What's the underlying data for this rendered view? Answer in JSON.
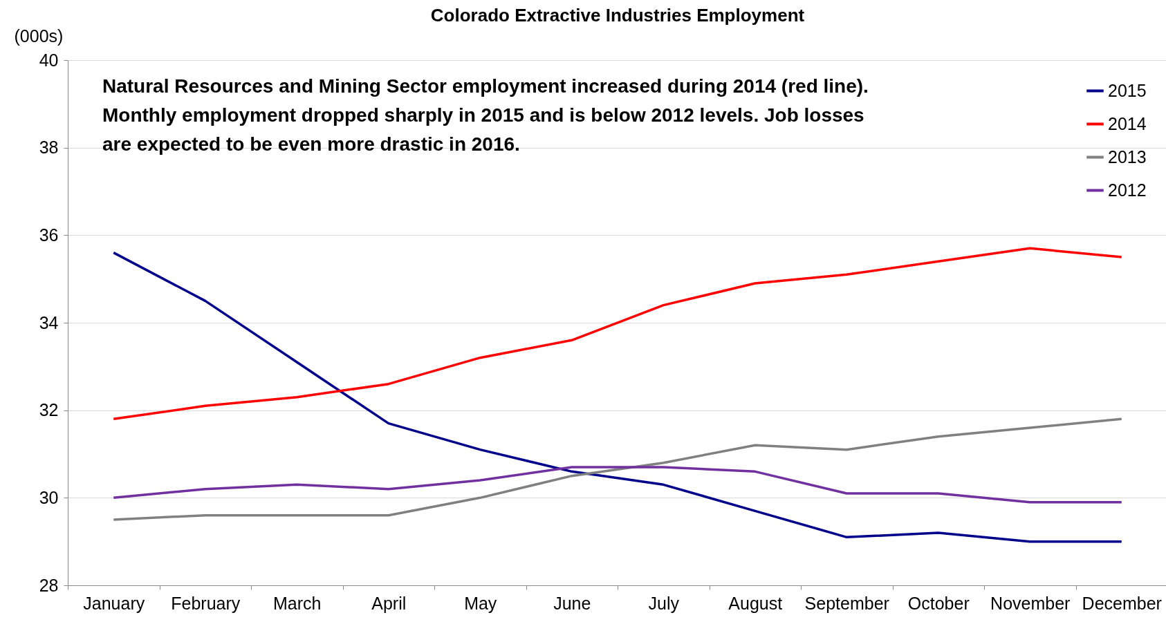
{
  "chart_data": {
    "type": "line",
    "title": "Colorado Extractive Industries Employment",
    "ylabel": "(000s)",
    "annotations": [
      "Natural Resources and Mining Sector employment increased during 2014 (red line). Monthly employment dropped sharply in 2015 and is below 2012 levels. Job losses are expected to be even more drastic in 2016."
    ],
    "categories": [
      "January",
      "February",
      "March",
      "April",
      "May",
      "June",
      "July",
      "August",
      "September",
      "October",
      "November",
      "December"
    ],
    "series": [
      {
        "name": "2015",
        "color": "#00008b",
        "values": [
          35.6,
          34.5,
          33.1,
          31.7,
          31.1,
          30.6,
          30.3,
          29.7,
          29.1,
          29.2,
          29.0,
          29.0
        ]
      },
      {
        "name": "2014",
        "color": "#ff0000",
        "values": [
          31.8,
          32.1,
          32.3,
          32.6,
          33.2,
          33.6,
          34.4,
          34.9,
          35.1,
          35.4,
          35.7,
          35.5
        ]
      },
      {
        "name": "2013",
        "color": "#808080",
        "values": [
          29.5,
          29.6,
          29.6,
          29.6,
          30.0,
          30.5,
          30.8,
          31.2,
          31.1,
          31.4,
          31.6,
          31.8
        ]
      },
      {
        "name": "2012",
        "color": "#7030a0",
        "values": [
          30.0,
          30.2,
          30.3,
          30.2,
          30.4,
          30.7,
          30.7,
          30.6,
          30.1,
          30.1,
          29.9,
          29.9
        ]
      }
    ],
    "ylim": [
      28,
      40
    ],
    "yticks": [
      28,
      30,
      32,
      34,
      36,
      38,
      40
    ],
    "grid": "y",
    "legend": "top right",
    "marker": "none",
    "line_style": "solid"
  }
}
